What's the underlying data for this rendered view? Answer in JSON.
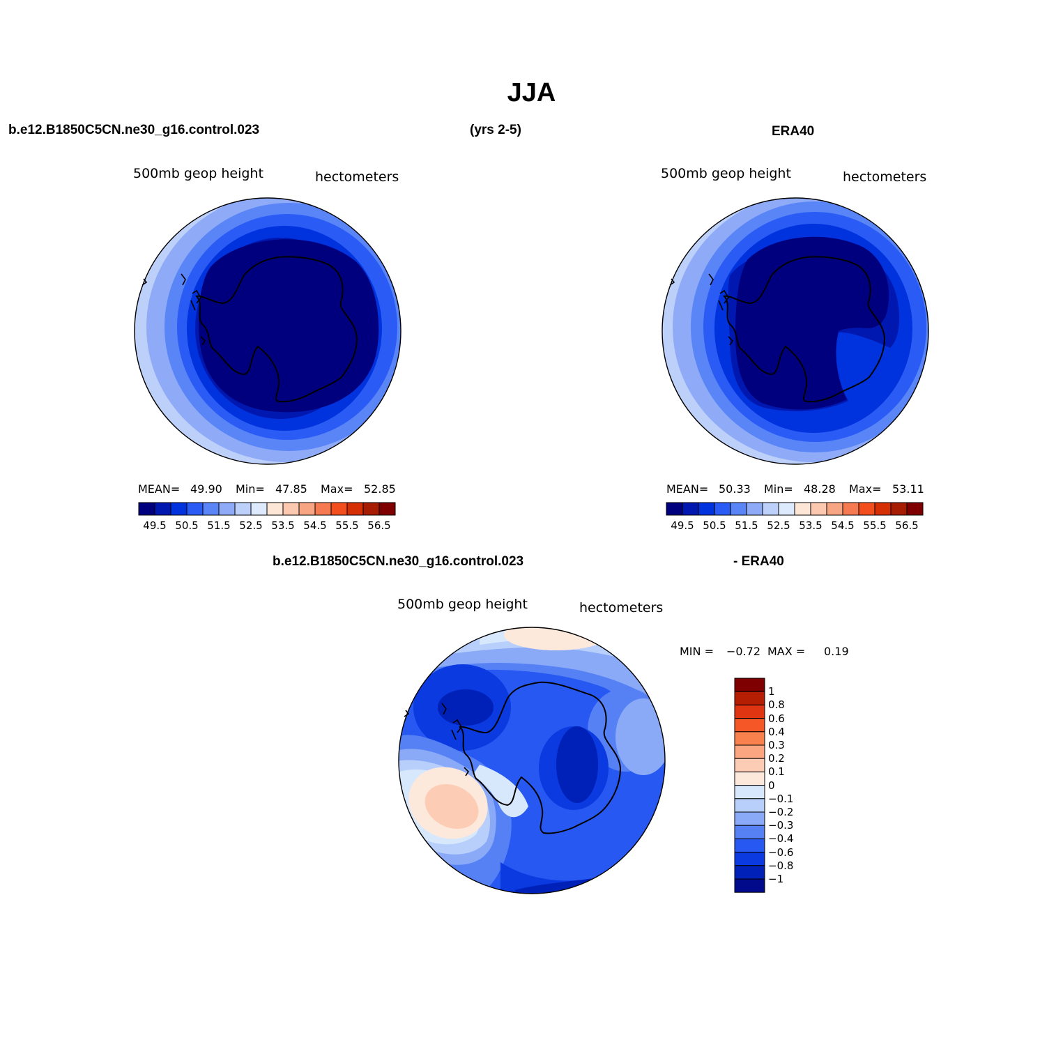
{
  "figure": {
    "title": "JJA",
    "top_left": "b.e12.B1850C5CN.ne30_g16.control.023",
    "top_center": "(yrs 2-5)",
    "top_right": "ERA40",
    "bottom_left": "b.e12.B1850C5CN.ne30_g16.control.023",
    "bottom_right": "- ERA40"
  },
  "panels": {
    "model": {
      "variable": "500mb  geop  height",
      "units": "hectometers",
      "mean_label": "MEAN=",
      "mean": "49.90",
      "min_label": "Min=",
      "min": "47.85",
      "max_label": "Max=",
      "max": "52.85"
    },
    "obs": {
      "variable": "500mb  geop  height",
      "units": "hectometers",
      "mean_label": "MEAN=",
      "mean": "50.33",
      "min_label": "Min=",
      "min": "48.28",
      "max_label": "Max=",
      "max": "53.11"
    },
    "diff": {
      "variable": "500mb  geop  height",
      "units": "hectometers",
      "min_label": "MIN =",
      "min": "−0.72",
      "max_label": "MAX =",
      "max": "0.19"
    }
  },
  "colorbar_abs": {
    "colors": [
      "#00007f",
      "#0018b0",
      "#0033dd",
      "#2a5cf5",
      "#5a85f7",
      "#8fabf8",
      "#bdd0fa",
      "#dde9fc",
      "#fde6d6",
      "#fcc8b0",
      "#f8a584",
      "#f57a52",
      "#f24e1e",
      "#d42f05",
      "#a61d03",
      "#7f0000"
    ],
    "labels": [
      "49.5",
      "50.5",
      "51.5",
      "52.5",
      "53.5",
      "54.5",
      "55.5",
      "56.5"
    ]
  },
  "colorbar_diff": {
    "colors": [
      "#7f0000",
      "#b51e02",
      "#e03512",
      "#f55727",
      "#f9814e",
      "#fba680",
      "#fcccb4",
      "#fde8dc",
      "#d8e8fc",
      "#b8cffb",
      "#8aaaf8",
      "#5581f5",
      "#2858f2",
      "#0a3ae0",
      "#0021b8",
      "#000a8a"
    ],
    "labels": [
      "1",
      "0.8",
      "0.6",
      "0.4",
      "0.3",
      "0.2",
      "0.1",
      "0",
      "−0.1",
      "−0.2",
      "−0.3",
      "−0.4",
      "−0.6",
      "−0.8",
      "−1"
    ]
  }
}
